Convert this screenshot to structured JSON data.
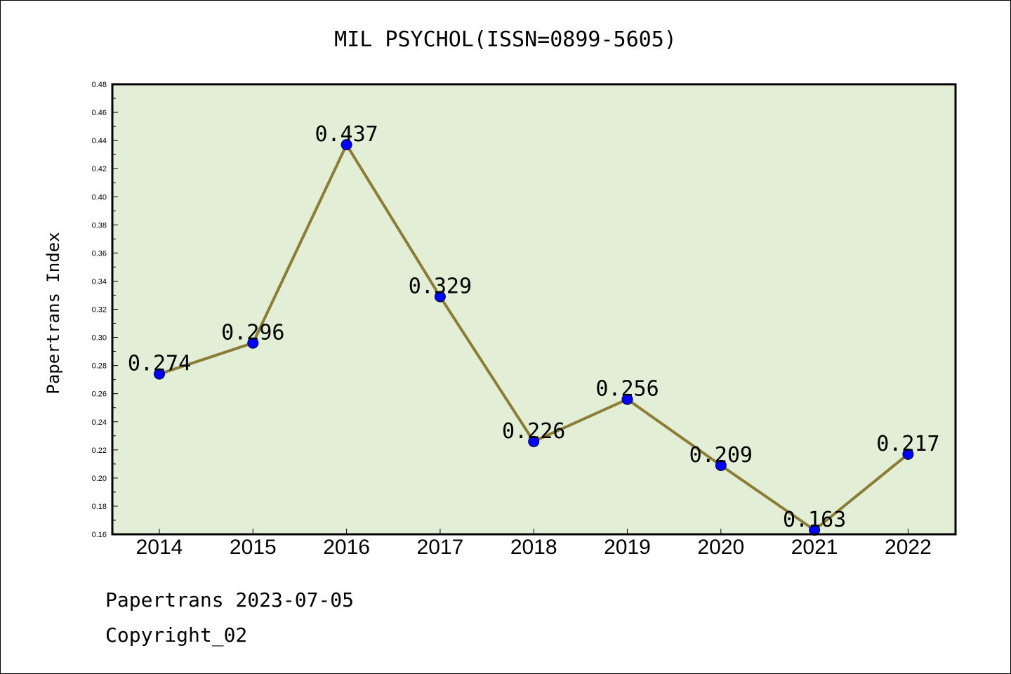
{
  "chart_data": {
    "type": "line",
    "title": "MIL PSYCHOL(ISSN=0899-5605)",
    "xlabel": "",
    "ylabel": "Papertrans Index",
    "categories": [
      "2014",
      "2015",
      "2016",
      "2017",
      "2018",
      "2019",
      "2020",
      "2021",
      "2022"
    ],
    "values": [
      0.274,
      0.296,
      0.437,
      0.329,
      0.226,
      0.256,
      0.209,
      0.163,
      0.217
    ],
    "data_labels": [
      "0.274",
      "0.296",
      "0.437",
      "0.329",
      "0.226",
      "0.256",
      "0.209",
      "0.163",
      "0.217"
    ],
    "ylim": [
      0.16,
      0.48
    ],
    "yticks": [
      "0.16",
      "0.18",
      "0.20",
      "0.22",
      "0.24",
      "0.26",
      "0.28",
      "0.30",
      "0.32",
      "0.34",
      "0.36",
      "0.38",
      "0.40",
      "0.42",
      "0.44",
      "0.46",
      "0.48"
    ],
    "grid": false,
    "colors": {
      "plot_background": "#e2efd6",
      "line": "#8b7d35",
      "marker": "#0000ff"
    }
  },
  "footer": {
    "line1": "Papertrans 2023-07-05",
    "line2": "Copyright_02"
  }
}
